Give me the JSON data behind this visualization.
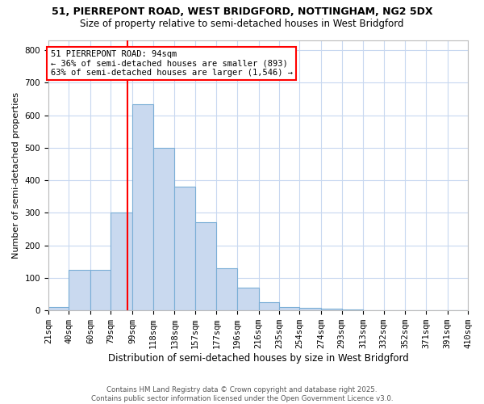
{
  "title1": "51, PIERREPONT ROAD, WEST BRIDGFORD, NOTTINGHAM, NG2 5DX",
  "title2": "Size of property relative to semi-detached houses in West Bridgford",
  "xlabel": "Distribution of semi-detached houses by size in West Bridgford",
  "ylabel": "Number of semi-detached properties",
  "bin_edges": [
    21,
    40,
    60,
    79,
    99,
    118,
    138,
    157,
    177,
    196,
    216,
    235,
    254,
    274,
    293,
    313,
    332,
    352,
    371,
    391,
    410
  ],
  "bin_heights": [
    10,
    125,
    125,
    300,
    635,
    500,
    380,
    270,
    130,
    70,
    25,
    10,
    7,
    5,
    4,
    0,
    0,
    0,
    0,
    0
  ],
  "bar_color": "#c9d9ef",
  "bar_edge_color": "#7aaed6",
  "vline_x": 94,
  "vline_color": "red",
  "annotation_text": "51 PIERREPONT ROAD: 94sqm\n← 36% of semi-detached houses are smaller (893)\n63% of semi-detached houses are larger (1,546) →",
  "annotation_box_color": "white",
  "annotation_box_edge": "red",
  "ylim": [
    0,
    830
  ],
  "yticks": [
    0,
    100,
    200,
    300,
    400,
    500,
    600,
    700,
    800
  ],
  "background_color": "#ffffff",
  "grid_color": "#c8d8f0",
  "footer_text": "Contains HM Land Registry data © Crown copyright and database right 2025.\nContains public sector information licensed under the Open Government Licence v3.0.",
  "bin_labels": [
    "21sqm",
    "40sqm",
    "60sqm",
    "79sqm",
    "99sqm",
    "118sqm",
    "138sqm",
    "157sqm",
    "177sqm",
    "196sqm",
    "216sqm",
    "235sqm",
    "254sqm",
    "274sqm",
    "293sqm",
    "313sqm",
    "332sqm",
    "352sqm",
    "371sqm",
    "391sqm",
    "410sqm"
  ],
  "title1_fontsize": 9,
  "title2_fontsize": 8.5,
  "xlabel_fontsize": 8.5,
  "ylabel_fontsize": 8,
  "tick_fontsize": 7.5,
  "footer_fontsize": 6.2,
  "annot_fontsize": 7.5
}
